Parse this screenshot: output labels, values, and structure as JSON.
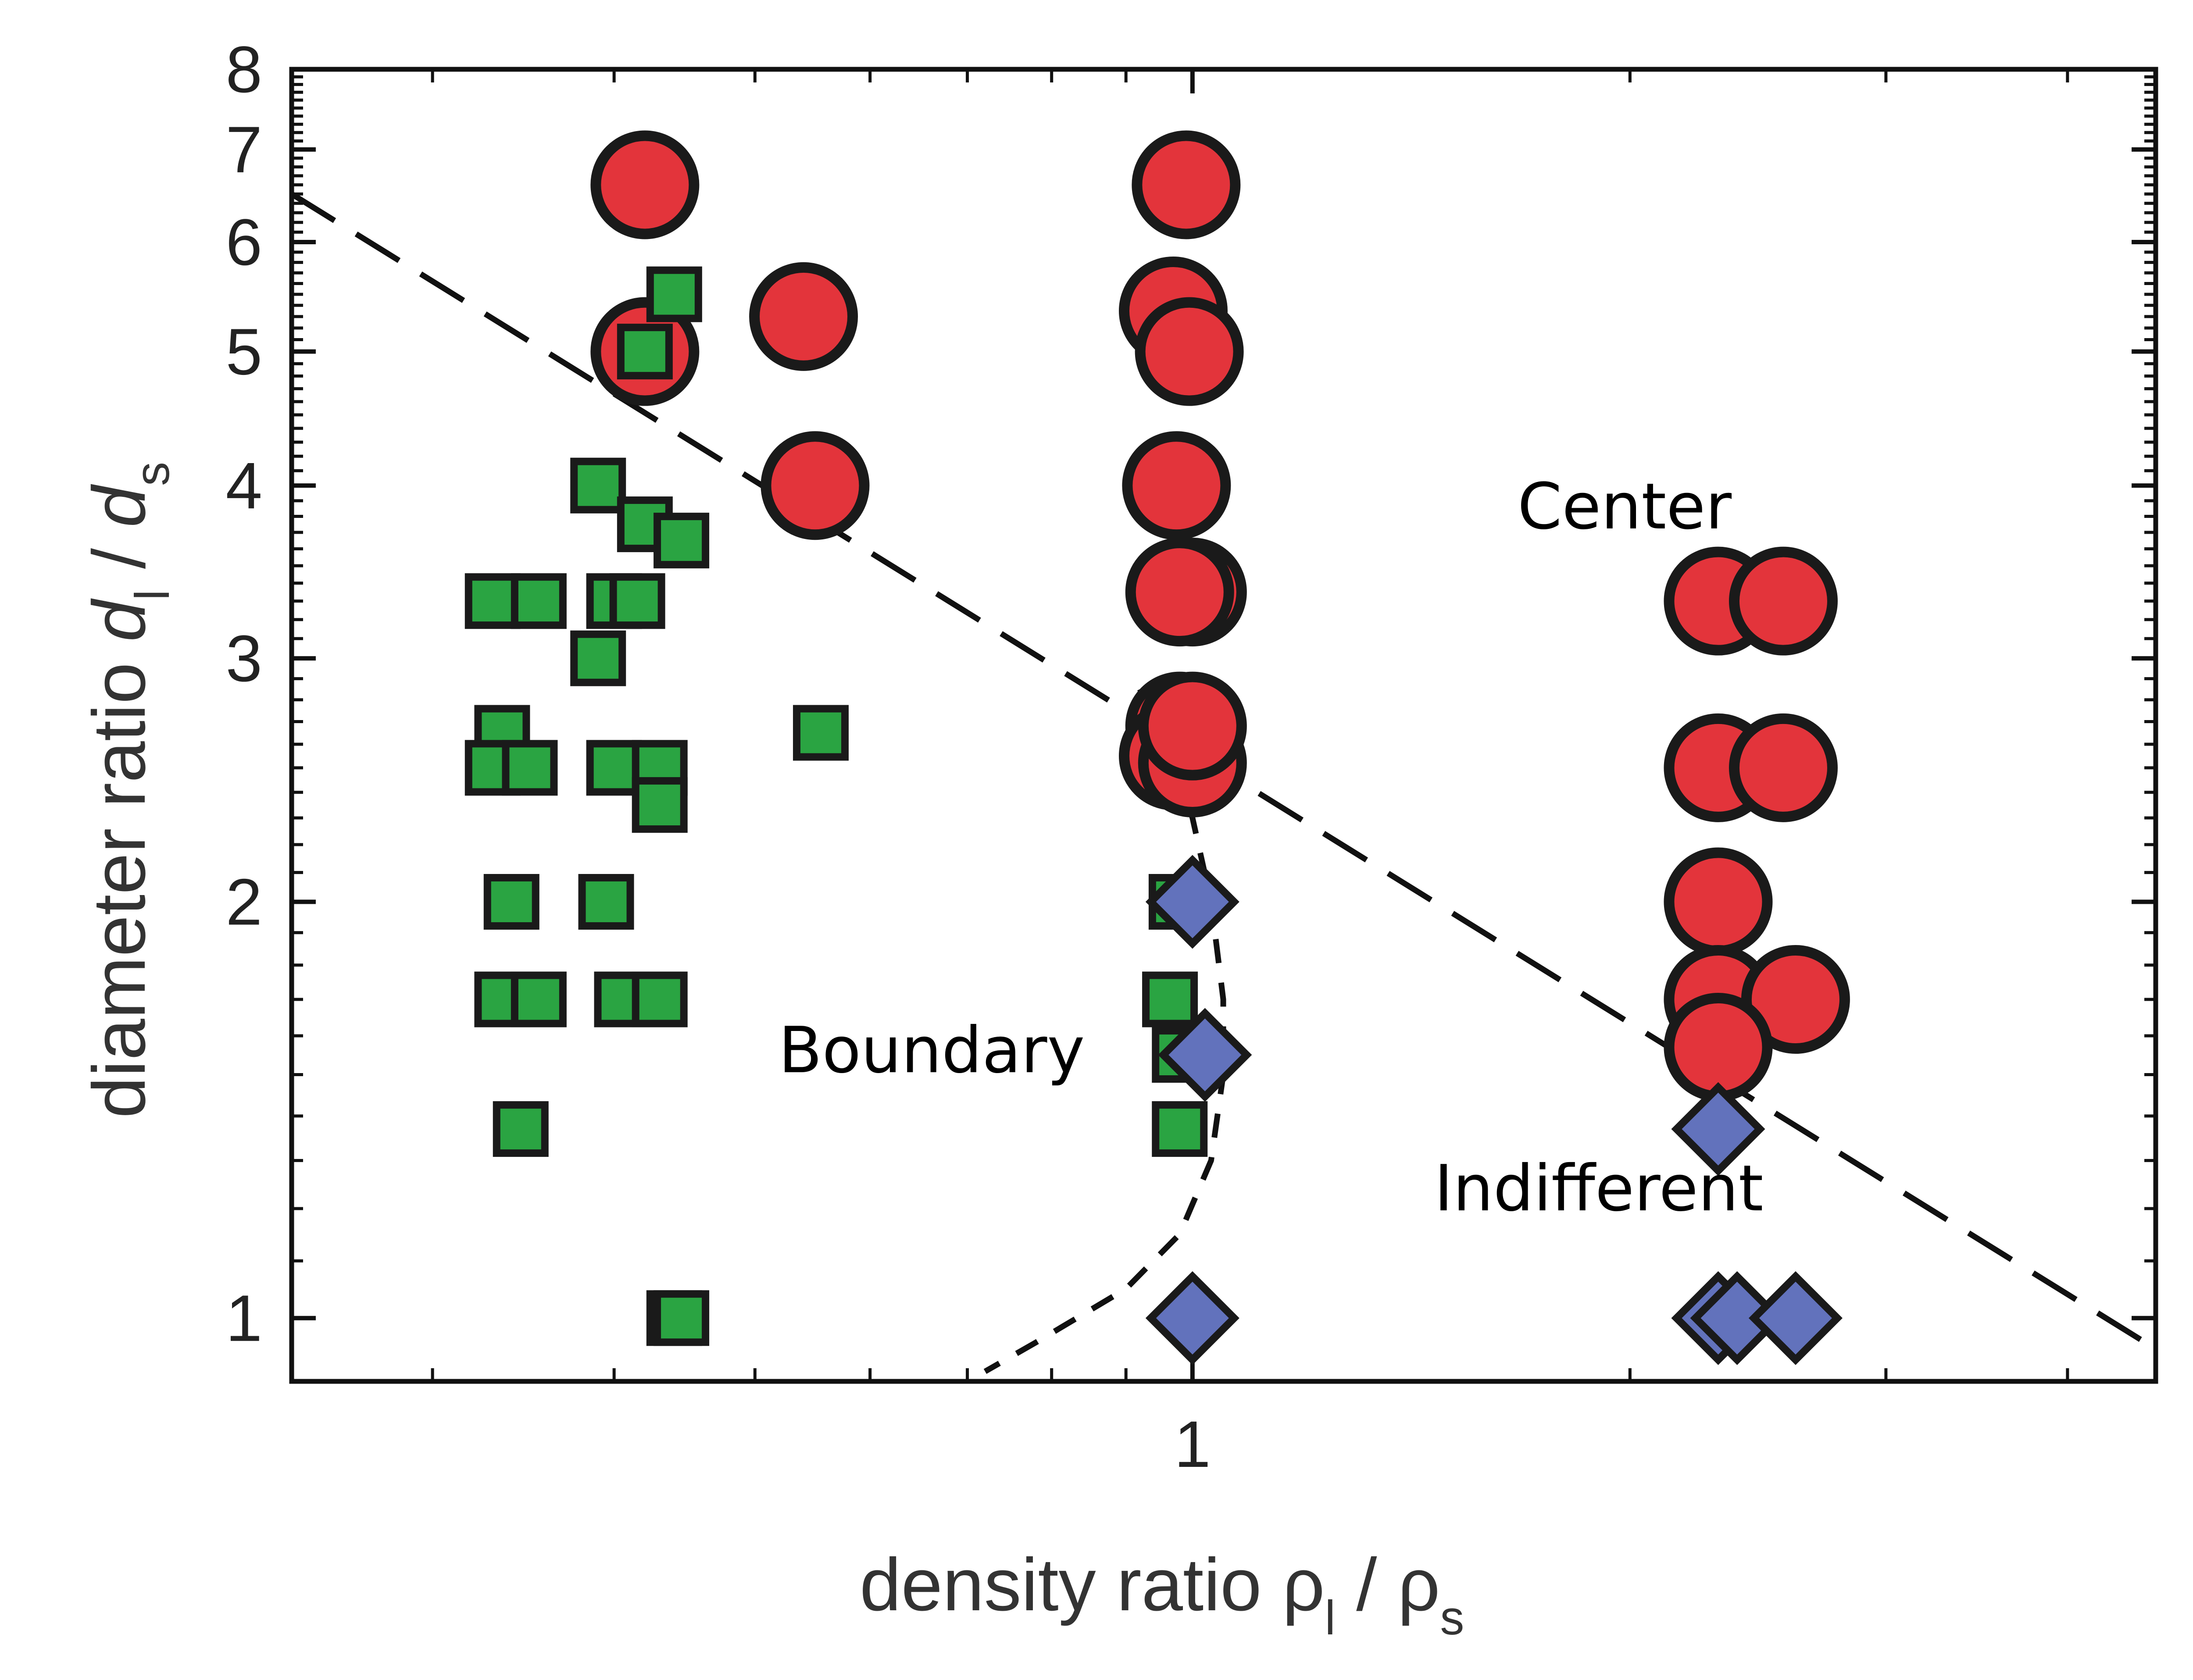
{
  "chart_data": {
    "type": "scatter",
    "title": "",
    "xlabel": "density ratio ρl / ρs",
    "xlabel_parts": {
      "main": "density ratio ρ",
      "sub1": "l",
      "sep": " / ρ",
      "sub2": "s"
    },
    "ylabel": "diameter ratio dl / ds",
    "ylabel_parts": {
      "main": "diameter ratio ",
      "d1": "d",
      "sub1": "l",
      "sep": " / ",
      "d2": "d",
      "sub2": "s"
    },
    "x_scale": "log",
    "y_scale": "log",
    "xlim": [
      0.24,
      4.6
    ],
    "ylim": [
      0.9,
      8
    ],
    "x_tick_labels": [
      {
        "value": 1,
        "label": "1"
      }
    ],
    "y_tick_labels": [
      {
        "value": 1,
        "label": "1"
      },
      {
        "value": 2,
        "label": "2"
      },
      {
        "value": 3,
        "label": "3"
      },
      {
        "value": 4,
        "label": "4"
      },
      {
        "value": 5,
        "label": "5"
      },
      {
        "value": 6,
        "label": "6"
      },
      {
        "value": 7,
        "label": "7"
      },
      {
        "value": 8,
        "label": "8"
      }
    ],
    "grid": false,
    "legend": "none",
    "colors": {
      "center": "#e3343b",
      "boundary": "#2aa442",
      "indifferent": "#6272bc",
      "outline": "#1a1a1a"
    },
    "annotations": [
      "Center",
      "Boundary",
      "Indifferent"
    ],
    "series": [
      {
        "marker": "circle",
        "color": "#e3343b",
        "points": [
          {
            "x": 0.42,
            "y": 6.6
          },
          {
            "x": 0.42,
            "y": 5.0
          },
          {
            "x": 0.54,
            "y": 5.3
          },
          {
            "x": 0.55,
            "y": 4.0
          },
          {
            "x": 0.99,
            "y": 6.6
          },
          {
            "x": 0.97,
            "y": 5.35
          },
          {
            "x": 0.995,
            "y": 5.0
          },
          {
            "x": 0.975,
            "y": 4.0
          },
          {
            "x": 1.0,
            "y": 3.35
          },
          {
            "x": 0.98,
            "y": 3.35
          },
          {
            "x": 0.98,
            "y": 2.68
          },
          {
            "x": 0.97,
            "y": 2.55
          },
          {
            "x": 1.0,
            "y": 2.52
          },
          {
            "x": 1.0,
            "y": 2.68
          },
          {
            "x": 2.3,
            "y": 3.3
          },
          {
            "x": 2.55,
            "y": 3.3
          },
          {
            "x": 2.3,
            "y": 2.5
          },
          {
            "x": 2.55,
            "y": 2.5
          },
          {
            "x": 2.3,
            "y": 2.0
          },
          {
            "x": 2.3,
            "y": 1.7
          },
          {
            "x": 2.6,
            "y": 1.7
          },
          {
            "x": 2.3,
            "y": 1.57
          }
        ]
      },
      {
        "marker": "square",
        "color": "#2aa442",
        "points": [
          {
            "x": 0.44,
            "y": 5.5
          },
          {
            "x": 0.42,
            "y": 5.0
          },
          {
            "x": 0.39,
            "y": 4.0
          },
          {
            "x": 0.42,
            "y": 3.75
          },
          {
            "x": 0.445,
            "y": 3.65
          },
          {
            "x": 0.33,
            "y": 3.3
          },
          {
            "x": 0.355,
            "y": 3.3
          },
          {
            "x": 0.4,
            "y": 3.3
          },
          {
            "x": 0.415,
            "y": 3.3
          },
          {
            "x": 0.39,
            "y": 3.0
          },
          {
            "x": 0.335,
            "y": 2.65
          },
          {
            "x": 0.33,
            "y": 2.5
          },
          {
            "x": 0.35,
            "y": 2.5
          },
          {
            "x": 0.4,
            "y": 2.5
          },
          {
            "x": 0.43,
            "y": 2.5
          },
          {
            "x": 0.43,
            "y": 2.35
          },
          {
            "x": 0.34,
            "y": 2.0
          },
          {
            "x": 0.395,
            "y": 2.0
          },
          {
            "x": 0.335,
            "y": 1.7
          },
          {
            "x": 0.355,
            "y": 1.7
          },
          {
            "x": 0.405,
            "y": 1.7
          },
          {
            "x": 0.43,
            "y": 1.7
          },
          {
            "x": 0.345,
            "y": 1.37
          },
          {
            "x": 0.44,
            "y": 1.0
          },
          {
            "x": 0.445,
            "y": 1.0
          },
          {
            "x": 0.555,
            "y": 2.65
          },
          {
            "x": 0.975,
            "y": 2.0
          },
          {
            "x": 0.965,
            "y": 1.7
          },
          {
            "x": 0.98,
            "y": 1.55
          },
          {
            "x": 0.98,
            "y": 1.37
          }
        ]
      },
      {
        "marker": "diamond",
        "color": "#6272bc",
        "points": [
          {
            "x": 1.0,
            "y": 2.0
          },
          {
            "x": 1.02,
            "y": 1.55
          },
          {
            "x": 1.0,
            "y": 1.0
          },
          {
            "x": 2.3,
            "y": 1.37
          },
          {
            "x": 2.3,
            "y": 1.0
          },
          {
            "x": 2.37,
            "y": 1.0
          },
          {
            "x": 2.6,
            "y": 1.0
          }
        ]
      }
    ],
    "curves": [
      {
        "style": "long-dash",
        "points": [
          {
            "x": 0.24,
            "y": 6.5
          },
          {
            "x": 4.6,
            "y": 0.95
          }
        ]
      },
      {
        "style": "short-dash",
        "points": [
          {
            "x": 0.92,
            "y": 2.85
          },
          {
            "x": 0.97,
            "y": 2.55
          },
          {
            "x": 1.0,
            "y": 2.3
          },
          {
            "x": 1.03,
            "y": 2.0
          },
          {
            "x": 1.05,
            "y": 1.7
          },
          {
            "x": 1.05,
            "y": 1.5
          },
          {
            "x": 1.03,
            "y": 1.3
          },
          {
            "x": 0.98,
            "y": 1.15
          },
          {
            "x": 0.9,
            "y": 1.05
          },
          {
            "x": 0.78,
            "y": 0.96
          },
          {
            "x": 0.72,
            "y": 0.915
          }
        ]
      }
    ]
  }
}
